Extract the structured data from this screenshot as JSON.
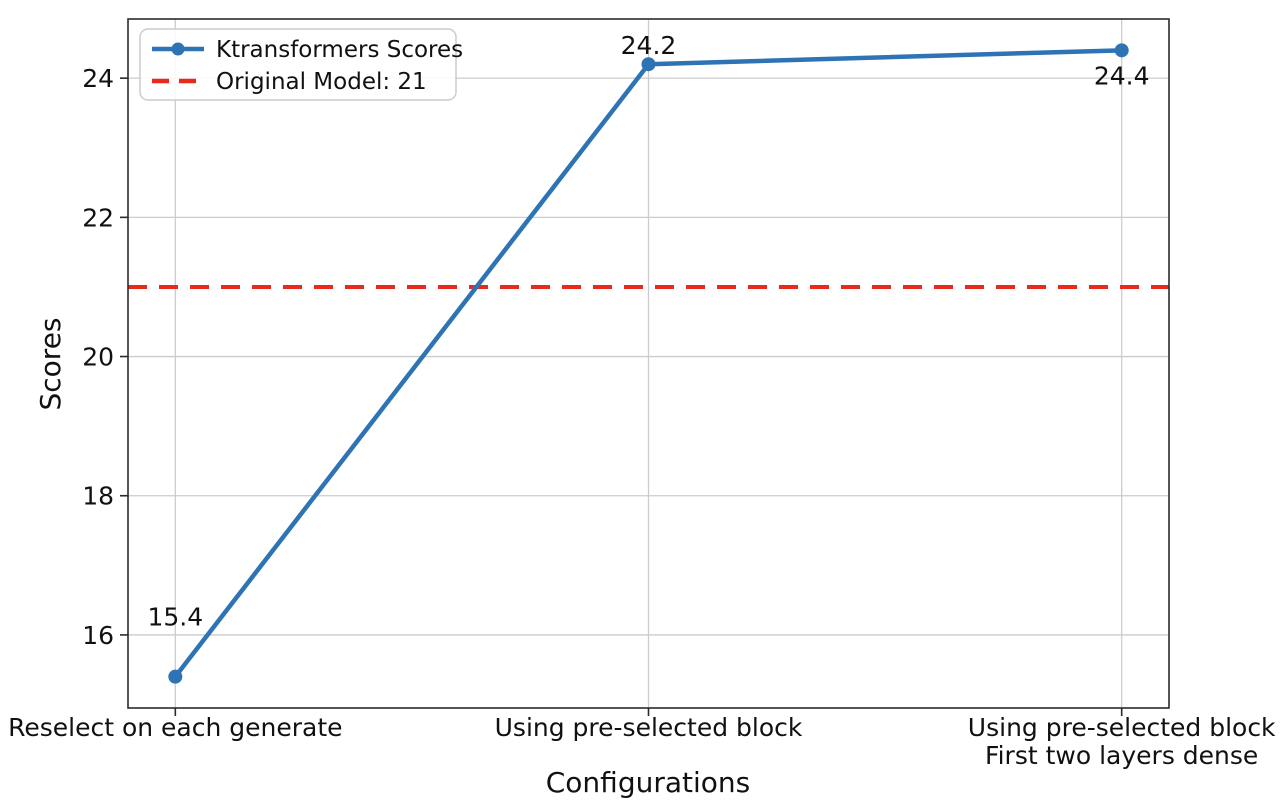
{
  "chart_data": {
    "type": "line",
    "title": "",
    "xlabel": "Configurations",
    "ylabel": "Scores",
    "categories": [
      "Reselect on each generate",
      "Using pre-selected block",
      "Using pre-selected block\nFirst two layers dense"
    ],
    "series": [
      {
        "name": "Ktransformers Scores",
        "values": [
          15.4,
          24.2,
          24.4
        ],
        "color": "#2e74b4",
        "style": "solid",
        "marker": "circle"
      }
    ],
    "reference_line": {
      "label": "Original Model: 21",
      "value": 21,
      "color": "#e8291c",
      "style": "dashed"
    },
    "point_labels": [
      "15.4",
      "24.2",
      "24.4"
    ],
    "yticks": [
      16,
      18,
      20,
      22,
      24
    ],
    "ylim": [
      14.95,
      24.85
    ],
    "grid": true,
    "legend": {
      "position": "upper-left",
      "entries": [
        "Ktransformers Scores",
        "Original Model: 21"
      ]
    }
  }
}
